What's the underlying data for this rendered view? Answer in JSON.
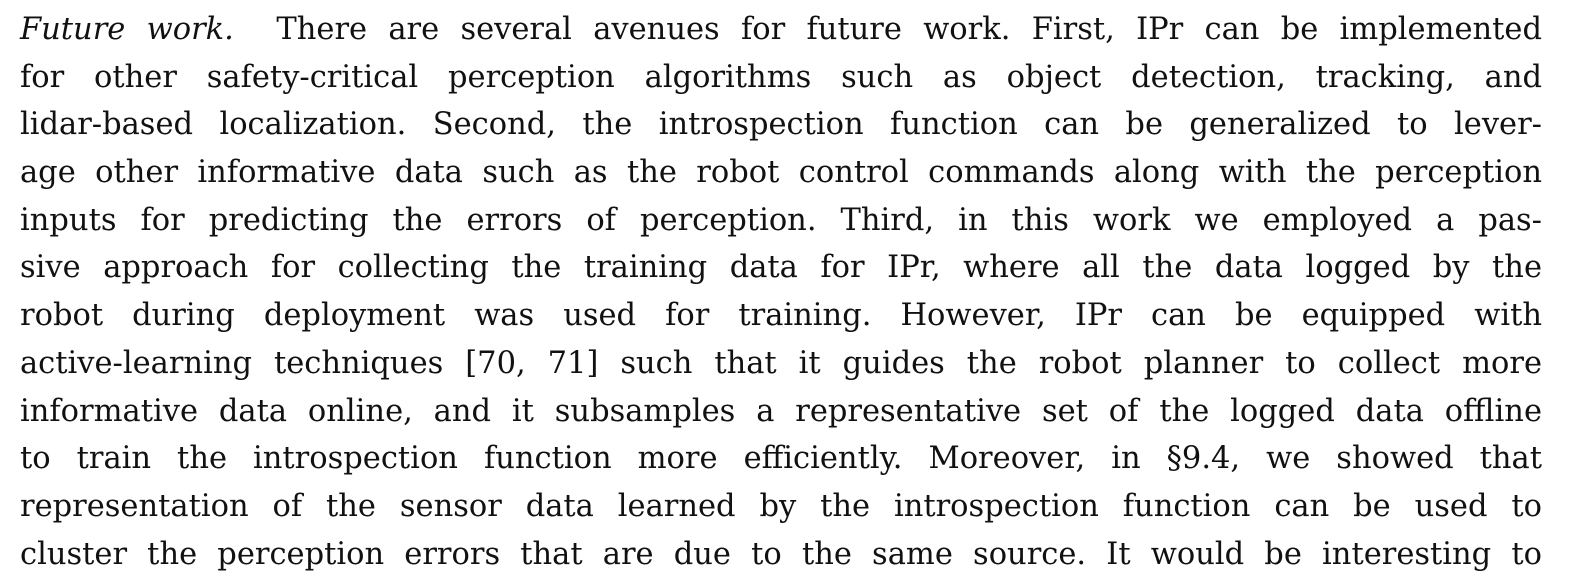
{
  "paragraph": {
    "run_in_heading": "Future work.",
    "lines": [
      "There are several avenues for future work. First, IPr can be implemented",
      "for other safety-critical perception algorithms such as object detection, tracking, and",
      "lidar-based localization. Second, the introspection function can be generalized to lever-",
      "age other informative data such as the robot control commands along with the perception",
      "inputs for predicting the errors of perception. Third, in this work we employed a pas-",
      "sive approach for collecting the training data for IPr, where all the data logged by the",
      "robot during deployment was used for training. However, IPr can be equipped with",
      "active-learning techniques [70, 71] such that it guides the robot planner to collect more",
      "informative data online, and it subsamples a representative set of the logged data offline",
      "to train the introspection function more efficiently. Moreover, in §9.4, we showed that",
      "representation of the sensor data learned by the introspection function can be used to",
      "cluster the perception errors that are due to the same source. It would be interesting to"
    ]
  }
}
